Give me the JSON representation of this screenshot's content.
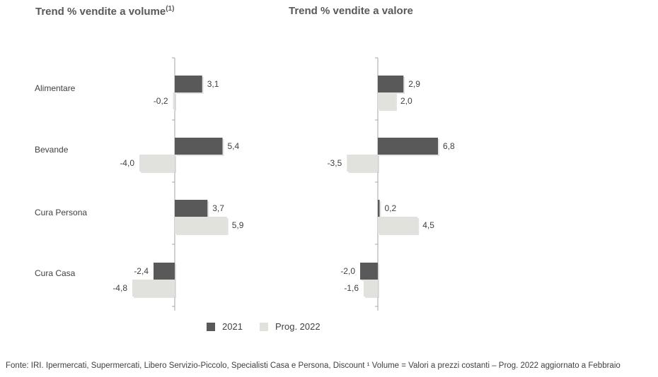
{
  "titles": {
    "volume": "Trend % vendite a volume",
    "volume_sup": "(1)",
    "value": "Trend % vendite a valore"
  },
  "categories": [
    "Alimentare",
    "Bevande",
    "Cura Persona",
    "Cura Casa"
  ],
  "colors": {
    "s2021": "#595959",
    "s2022": "#e1e1de"
  },
  "legend": {
    "s2021": "2021",
    "s2022": "Prog. 2022"
  },
  "chart_data": [
    {
      "type": "bar",
      "orientation": "horizontal",
      "title": "Trend % vendite a volume(1)",
      "categories": [
        "Alimentare",
        "Bevande",
        "Cura Persona",
        "Cura Casa"
      ],
      "series": [
        {
          "name": "2021",
          "values": [
            3.1,
            5.4,
            3.7,
            -2.4
          ]
        },
        {
          "name": "Prog. 2022",
          "values": [
            -0.2,
            -4.0,
            5.9,
            -4.8
          ]
        }
      ],
      "labels": {
        "2021": [
          "3,1",
          "5,4",
          "3,7",
          "-2,4"
        ],
        "Prog. 2022": [
          "-0,2",
          "-4,0",
          "5,9",
          "-4,8"
        ]
      }
    },
    {
      "type": "bar",
      "orientation": "horizontal",
      "title": "Trend % vendite a valore",
      "categories": [
        "Alimentare",
        "Bevande",
        "Cura Persona",
        "Cura Casa"
      ],
      "series": [
        {
          "name": "2021",
          "values": [
            2.9,
            6.8,
            0.2,
            -2.0
          ]
        },
        {
          "name": "Prog. 2022",
          "values": [
            2.0,
            -3.5,
            4.5,
            -1.6
          ]
        }
      ],
      "labels": {
        "2021": [
          "2,9",
          "6,8",
          "0,2",
          "-2,0"
        ],
        "Prog. 2022": [
          "2,0",
          "-3,5",
          "4,5",
          "-1,6"
        ]
      }
    }
  ],
  "footnote": "Fonte: IRI. Ipermercati, Supermercati, Libero Servizio-Piccolo, Specialisti Casa e Persona, Discount ¹ Volume = Valori a prezzi costanti – Prog. 2022 aggiornato a Febbraio"
}
